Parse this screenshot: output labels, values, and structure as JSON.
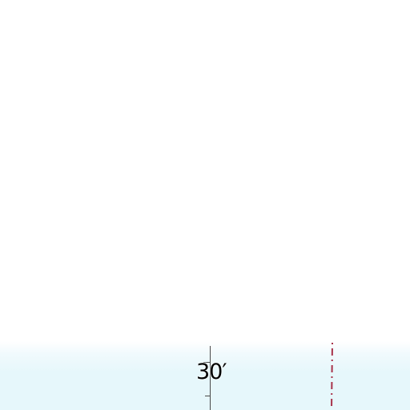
{
  "map": {
    "background_color": "#ffffff",
    "water_color": "#e6f7fb",
    "grid": {
      "line_color": "#4a4a4a",
      "label": "30′"
    },
    "boundary": {
      "color": "#a8324a",
      "style": "dashed"
    }
  }
}
